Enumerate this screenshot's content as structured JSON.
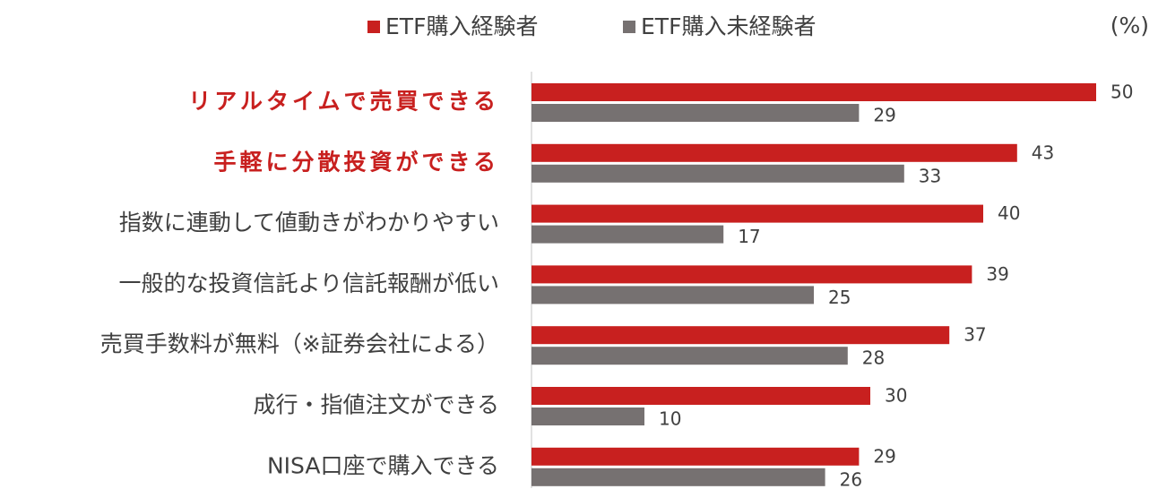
{
  "chart_data": {
    "type": "bar",
    "orientation": "horizontal",
    "unit": "(%)",
    "categories": [
      "リアルタイムで売買できる",
      "手軽に分散投資ができる",
      "指数に連動して値動きがわかりやすい",
      "一般的な投資信託より信託報酬が低い",
      "売買手数料が無料（※証券会社による）",
      "成行・指値注文ができる",
      "NISA口座で購入できる"
    ],
    "highlight": [
      0,
      1
    ],
    "highlight_color": "#c8201f",
    "series": [
      {
        "name": "ETF購入経験者",
        "color": "#c8201f",
        "values": [
          50,
          43,
          40,
          39,
          37,
          30,
          29
        ]
      },
      {
        "name": "ETF購入未経験者",
        "color": "#767171",
        "values": [
          29,
          33,
          17,
          25,
          28,
          10,
          26
        ]
      }
    ],
    "xlim": [
      0,
      50
    ],
    "legend": "top"
  }
}
